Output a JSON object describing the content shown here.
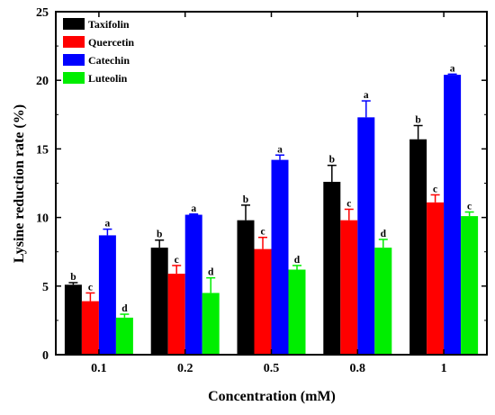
{
  "chart_data": {
    "type": "bar",
    "title": "",
    "xlabel": "Concentration (mM)",
    "ylabel": "Lysine reduction rate (%)",
    "categories": [
      "0.1",
      "0.2",
      "0.5",
      "0.8",
      "1"
    ],
    "ylim": [
      0,
      25
    ],
    "yticks": [
      0,
      5,
      10,
      15,
      20,
      25
    ],
    "grid": false,
    "legend_position": "top-left",
    "series": [
      {
        "name": "Taxifolin",
        "color": "#000000",
        "values": [
          5.1,
          7.8,
          9.8,
          12.6,
          15.7
        ],
        "errors": [
          0.15,
          0.55,
          1.1,
          1.2,
          1.0
        ],
        "labels": [
          "b",
          "b",
          "b",
          "b",
          "b"
        ]
      },
      {
        "name": "Quercetin",
        "color": "#ff0000",
        "values": [
          3.9,
          5.9,
          7.7,
          9.8,
          11.1
        ],
        "errors": [
          0.6,
          0.6,
          0.85,
          0.8,
          0.55
        ],
        "labels": [
          "c",
          "c",
          "c",
          "c",
          "c"
        ]
      },
      {
        "name": "Catechin",
        "color": "#0000ff",
        "values": [
          8.7,
          10.2,
          14.2,
          17.3,
          20.4
        ],
        "errors": [
          0.45,
          0.05,
          0.35,
          1.2,
          0.05
        ],
        "labels": [
          "a",
          "a",
          "a",
          "a",
          "a"
        ]
      },
      {
        "name": "Luteolin",
        "color": "#00ee00",
        "values": [
          2.7,
          4.5,
          6.2,
          7.8,
          10.1
        ],
        "errors": [
          0.25,
          1.1,
          0.3,
          0.6,
          0.3
        ],
        "labels": [
          "d",
          "d",
          "d",
          "d",
          "c"
        ]
      }
    ]
  }
}
